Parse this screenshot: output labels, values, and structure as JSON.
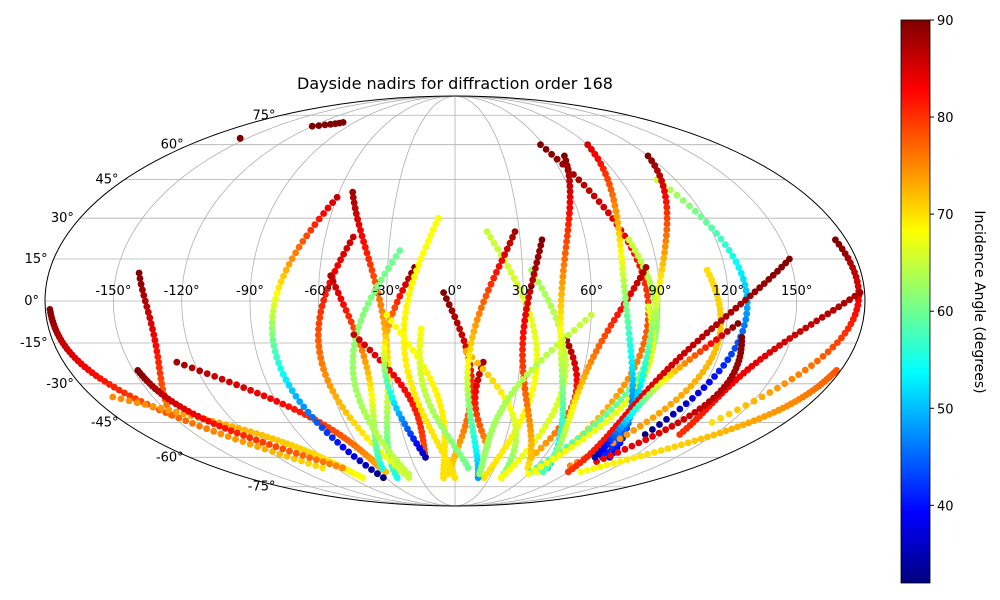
{
  "chart_data": {
    "type": "scatter",
    "projection": "mollweide",
    "title": "Dayside nadirs for diffraction order 168",
    "lon_ticks": [
      -150,
      -120,
      -90,
      -60,
      -30,
      0,
      30,
      60,
      90,
      120,
      150
    ],
    "lat_ticks": [
      -75,
      -60,
      -45,
      -30,
      -15,
      0,
      15,
      30,
      45,
      60,
      75
    ],
    "lon_tick_labels": [
      "-150°",
      "-120°",
      "-90°",
      "-60°",
      "-30°",
      "0°",
      "30°",
      "60°",
      "90°",
      "120°",
      "150°"
    ],
    "lat_tick_labels": [
      "-75°",
      "-60°",
      "-45°",
      "-30°",
      "-15°",
      "0°",
      "15°",
      "30°",
      "45°",
      "60°",
      "75°"
    ],
    "grid": true,
    "colorbar": {
      "label": "Incidence Angle (degrees)",
      "range": [
        32,
        90
      ],
      "ticks": [
        40,
        50,
        60,
        70,
        80,
        90
      ],
      "tick_labels": [
        "40",
        "50",
        "60",
        "70",
        "80",
        "90"
      ],
      "colormap": "jet",
      "placement": "right"
    },
    "tracks": [
      {
        "lon_start": -140,
        "lat_start": 10,
        "lon_end": -150,
        "lat_end": -42,
        "inc_start": 90,
        "inc_end": 75
      },
      {
        "lon_start": -178,
        "lat_start": -3,
        "lon_end": -100,
        "lat_end": -65,
        "inc_start": 90,
        "inc_end": 70
      },
      {
        "lon_start": -170,
        "lat_start": -35,
        "lon_end": -80,
        "lat_end": -70,
        "inc_start": 75,
        "inc_end": 68
      },
      {
        "lon_start": -148,
        "lat_start": -25,
        "lon_end": -85,
        "lat_end": -65,
        "inc_start": 90,
        "inc_end": 75
      },
      {
        "lon_start": -128,
        "lat_start": -22,
        "lon_end": -55,
        "lat_end": -67,
        "inc_start": 88,
        "inc_end": 72
      },
      {
        "lon_start": -60,
        "lat_start": 38,
        "lon_end": -62,
        "lat_end": -70,
        "inc_start": 86,
        "inc_end": 32
      },
      {
        "lon_start": -53,
        "lat_start": 40,
        "lon_end": -50,
        "lat_end": -70,
        "inc_start": 88,
        "inc_end": 55
      },
      {
        "lon_start": -47,
        "lat_start": 23,
        "lon_end": -40,
        "lat_end": -70,
        "inc_start": 86,
        "inc_end": 65
      },
      {
        "lon_start": -55,
        "lat_start": 9,
        "lon_end": -55,
        "lat_end": -65,
        "inc_start": 87,
        "inc_end": 55
      },
      {
        "lon_start": -25,
        "lat_start": 18,
        "lon_end": -38,
        "lat_end": -68,
        "inc_start": 60,
        "inc_end": 65
      },
      {
        "lon_start": -45,
        "lat_start": -12,
        "lon_end": -20,
        "lat_end": -60,
        "inc_start": 86,
        "inc_end": 78
      },
      {
        "lon_start": -18,
        "lat_start": 12,
        "lon_end": -20,
        "lat_end": -60,
        "inc_start": 90,
        "inc_end": 35
      },
      {
        "lon_start": -5,
        "lat_start": 3,
        "lon_end": -5,
        "lat_end": -68,
        "inc_start": 90,
        "inc_end": 70
      },
      {
        "lon_start": -8,
        "lat_start": 30,
        "lon_end": 0,
        "lat_end": -70,
        "inc_start": 68,
        "inc_end": 70
      },
      {
        "lon_start": -30,
        "lat_start": -5,
        "lon_end": -10,
        "lat_end": -70,
        "inc_start": 68,
        "inc_end": 70
      },
      {
        "lon_start": -15,
        "lat_start": -10,
        "lon_end": 10,
        "lat_end": -65,
        "inc_start": 68,
        "inc_end": 60
      },
      {
        "lon_start": 15,
        "lat_start": 25,
        "lon_end": 25,
        "lat_end": -70,
        "inc_start": 65,
        "inc_end": 70
      },
      {
        "lon_start": 13,
        "lat_start": -22,
        "lon_end": 20,
        "lat_end": -55,
        "inc_start": 88,
        "inc_end": 74
      },
      {
        "lon_start": 5,
        "lat_start": -18,
        "lon_end": 40,
        "lat_end": -70,
        "inc_start": 73,
        "inc_end": 60
      },
      {
        "lon_start": 28,
        "lat_start": 25,
        "lon_end": 20,
        "lat_end": -70,
        "inc_start": 88,
        "inc_end": 48
      },
      {
        "lon_start": 34,
        "lat_start": 11,
        "lon_end": 40,
        "lat_end": -70,
        "inc_start": 63,
        "inc_end": 68
      },
      {
        "lon_start": 40,
        "lat_start": 22,
        "lon_end": 55,
        "lat_end": -65,
        "inc_start": 90,
        "inc_end": 70
      },
      {
        "lon_start": 50,
        "lat_start": -14,
        "lon_end": 52,
        "lat_end": -60,
        "inc_start": 88,
        "inc_end": 72
      },
      {
        "lon_start": 60,
        "lat_start": -5,
        "lon_end": 20,
        "lat_end": -68,
        "inc_start": 65,
        "inc_end": 62
      },
      {
        "lon_start": 58,
        "lat_start": 60,
        "lon_end": 65,
        "lat_end": -67,
        "inc_start": 90,
        "inc_end": 68
      },
      {
        "lon_start": 68,
        "lat_start": 55,
        "lon_end": 70,
        "lat_end": -65,
        "inc_start": 90,
        "inc_end": 50
      },
      {
        "lon_start": 80,
        "lat_start": 22,
        "lon_end": 60,
        "lat_end": -67,
        "inc_start": 65,
        "inc_end": 57
      },
      {
        "lon_start": 85,
        "lat_start": 12,
        "lon_end": 70,
        "lat_end": -67,
        "inc_start": 88,
        "inc_end": 58
      },
      {
        "lon_start": 85,
        "lat_start": -2,
        "lon_end": 60,
        "lat_end": -68,
        "inc_start": 66,
        "inc_end": 68
      },
      {
        "lon_start": 90,
        "lat_start": 60,
        "lon_end": 105,
        "lat_end": -60,
        "inc_start": 85,
        "inc_end": 38
      },
      {
        "lon_start": 110,
        "lat_start": 45,
        "lon_end": 110,
        "lat_end": -50,
        "inc_start": 65,
        "inc_end": 32
      },
      {
        "lon_start": 120,
        "lat_start": 55,
        "lon_end": 100,
        "lat_end": -60,
        "inc_start": 90,
        "inc_end": 40
      },
      {
        "lon_start": 112,
        "lat_start": 11,
        "lon_end": 85,
        "lat_end": -64,
        "inc_start": 70,
        "inc_end": 75
      },
      {
        "lon_start": 150,
        "lat_start": 15,
        "lon_end": 90,
        "lat_end": -67,
        "inc_start": 90,
        "inc_end": 80
      },
      {
        "lon_start": 175,
        "lat_start": 22,
        "lon_end": 140,
        "lat_end": -45,
        "inc_start": 90,
        "inc_end": 70
      },
      {
        "lon_start": 178,
        "lat_start": 3,
        "lon_end": 130,
        "lat_end": -50,
        "inc_start": 88,
        "inc_end": 80
      },
      {
        "lon_start": 128,
        "lat_start": -13,
        "lon_end": 100,
        "lat_end": -62,
        "inc_start": 90,
        "inc_end": 83
      },
      {
        "lon_start": 125,
        "lat_start": -8,
        "lon_end": 95,
        "lat_end": -60,
        "inc_start": 90,
        "inc_end": 35
      },
      {
        "lon_start": 178,
        "lat_start": -25,
        "lon_end": 100,
        "lat_end": -67,
        "inc_start": 78,
        "inc_end": 68
      },
      {
        "lon_start": -155,
        "lat_start": 63,
        "lon_end": -155,
        "lat_end": 63,
        "inc_start": 90,
        "inc_end": 90
      },
      {
        "lon_start": -120,
        "lat_start": 69,
        "lon_end": -100,
        "lat_end": 71,
        "inc_start": 90,
        "inc_end": 90
      }
    ]
  }
}
